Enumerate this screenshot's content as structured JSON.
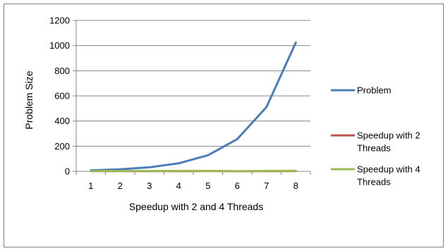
{
  "chart_data": {
    "type": "line",
    "title": "",
    "xlabel": "Speedup with 2 and 4 Threads",
    "ylabel": "Problem Size",
    "categories": [
      "1",
      "2",
      "3",
      "4",
      "5",
      "6",
      "7",
      "8"
    ],
    "ylim": [
      0,
      1200
    ],
    "yticks": [
      "0",
      "200",
      "400",
      "600",
      "800",
      "1000",
      "1200"
    ],
    "grid": "horizontal",
    "legend_position": "right",
    "series": [
      {
        "name": "Problem",
        "color": "#4a7ebb",
        "values": [
          8,
          16,
          32,
          64,
          128,
          256,
          512,
          1024
        ]
      },
      {
        "name": "Speedup with 2 Threads",
        "legend_lines": [
          "Speedup with 2",
          "Threads"
        ],
        "color": "#c0504d",
        "values": [
          1.5,
          1.8,
          1.9,
          1.9,
          2.0,
          0.5,
          1.9,
          2.0
        ]
      },
      {
        "name": "Speedup with 4 Threads",
        "legend_lines": [
          "Speedup with 4",
          "Threads"
        ],
        "color": "#9bbb59",
        "values": [
          2.0,
          2.5,
          3.0,
          3.2,
          3.4,
          0.7,
          3.5,
          3.7
        ]
      }
    ]
  }
}
